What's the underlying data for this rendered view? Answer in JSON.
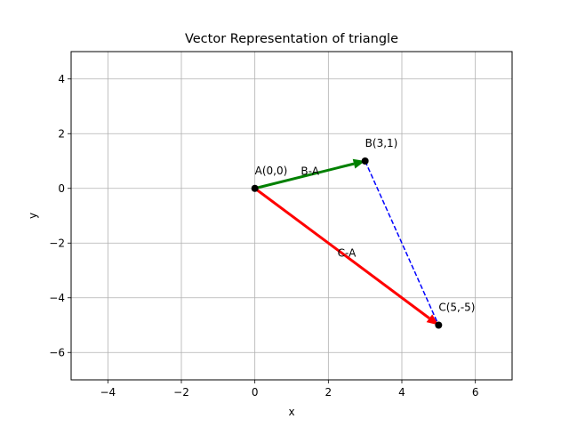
{
  "chart_data": {
    "type": "scatter",
    "title": "Vector Representation of triangle",
    "xlabel": "x",
    "ylabel": "y",
    "xlim": [
      -5,
      7
    ],
    "ylim": [
      -7,
      5
    ],
    "xticks": [
      -4,
      -2,
      0,
      2,
      4,
      6
    ],
    "yticks": [
      -6,
      -4,
      -2,
      0,
      2,
      4
    ],
    "grid": true,
    "points": [
      {
        "label": "A(0,0)",
        "x": 0,
        "y": 0
      },
      {
        "label": "B(3,1)",
        "x": 3,
        "y": 1
      },
      {
        "label": "C(5,-5)",
        "x": 5,
        "y": -5
      }
    ],
    "vectors": [
      {
        "label": "B-A",
        "from": [
          0,
          0
        ],
        "to": [
          3,
          1
        ],
        "color": "#008000"
      },
      {
        "label": "C-A",
        "from": [
          0,
          0
        ],
        "to": [
          5,
          -5
        ],
        "color": "#ff0000"
      }
    ],
    "segments": [
      {
        "from": [
          3,
          1
        ],
        "to": [
          5,
          -5
        ],
        "color": "#0000ff",
        "style": "dashed"
      }
    ]
  }
}
